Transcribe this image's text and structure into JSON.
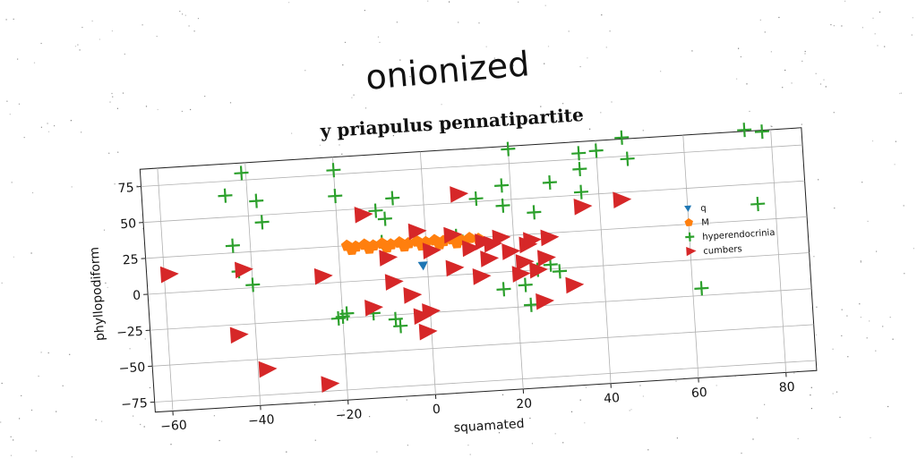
{
  "header": {
    "handwritten_title": "onionized"
  },
  "chart_data": {
    "type": "scatter",
    "title": "y priapulus pennatipartite",
    "xlabel": "squamated",
    "ylabel": "phyllopodiform",
    "xlim": [
      -64,
      87
    ],
    "ylim": [
      -82,
      87
    ],
    "xticks": [
      -60,
      -40,
      -20,
      0,
      20,
      40,
      60,
      80
    ],
    "yticks": [
      -75,
      -50,
      -25,
      0,
      25,
      50,
      75
    ],
    "grid": true,
    "legend_position": "right",
    "series": [
      {
        "name": "q",
        "marker": "triangle-down",
        "color": "#1f77b4",
        "points": [
          [
            -1,
            8
          ]
        ]
      },
      {
        "name": "M",
        "marker": "pentagon",
        "color": "#ff7f0e",
        "points": [
          [
            -18,
            25
          ],
          [
            -16,
            24
          ],
          [
            -14,
            25
          ],
          [
            -12,
            24
          ],
          [
            -10,
            25
          ],
          [
            -8,
            24
          ],
          [
            -6,
            25
          ],
          [
            -4,
            24
          ],
          [
            -2,
            25
          ],
          [
            0,
            24
          ],
          [
            2,
            25
          ],
          [
            4,
            24
          ],
          [
            6,
            25
          ],
          [
            8,
            24
          ],
          [
            10,
            25
          ],
          [
            12,
            24
          ],
          [
            -17,
            22
          ],
          [
            -13,
            22
          ],
          [
            -9,
            22
          ],
          [
            -5,
            22
          ],
          [
            -1,
            22
          ],
          [
            3,
            22
          ],
          [
            7,
            22
          ]
        ]
      },
      {
        "name": "hyperendocrinia",
        "marker": "plus",
        "color": "#2ca02c",
        "points": [
          [
            -41,
            80
          ],
          [
            -20,
            78
          ],
          [
            20,
            85
          ],
          [
            46,
            88
          ],
          [
            74,
            88
          ],
          [
            78,
            86
          ],
          [
            36,
            79
          ],
          [
            40,
            80
          ],
          [
            47,
            73
          ],
          [
            -45,
            65
          ],
          [
            -38,
            60
          ],
          [
            -20,
            60
          ],
          [
            -7,
            56
          ],
          [
            18,
            60
          ],
          [
            29,
            60
          ],
          [
            12,
            52
          ],
          [
            -37,
            45
          ],
          [
            -11,
            48
          ],
          [
            -9,
            42
          ],
          [
            18,
            46
          ],
          [
            25,
            40
          ],
          [
            36,
            52
          ],
          [
            36,
            68
          ],
          [
            76,
            36
          ],
          [
            -44,
            30
          ],
          [
            -43,
            12
          ],
          [
            -40,
            2
          ],
          [
            -10,
            26
          ],
          [
            7,
            27
          ],
          [
            -13,
            -23
          ],
          [
            -8,
            -28
          ],
          [
            -7,
            -33
          ],
          [
            -21,
            -25
          ],
          [
            -20,
            -24
          ],
          [
            -19,
            -22
          ],
          [
            17,
            -12
          ],
          [
            22,
            -10
          ],
          [
            23,
            -24
          ],
          [
            25,
            0
          ],
          [
            28,
            3
          ],
          [
            30,
            -2
          ],
          [
            62,
            -20
          ]
        ]
      },
      {
        "name": "cumbers",
        "marker": "triangle-right",
        "color": "#d62728",
        "points": [
          [
            -59,
            13
          ],
          [
            -42,
            13
          ],
          [
            -44,
            -32
          ],
          [
            -38,
            -57
          ],
          [
            -24,
            -70
          ],
          [
            -24,
            5
          ],
          [
            -14,
            46
          ],
          [
            -13,
            -19
          ],
          [
            -9,
            15
          ],
          [
            -8,
            -2
          ],
          [
            -4,
            -12
          ],
          [
            -2,
            -27
          ],
          [
            -1,
            -38
          ],
          [
            -2,
            32
          ],
          [
            0,
            -24
          ],
          [
            1,
            18
          ],
          [
            6,
            28
          ],
          [
            6,
            5
          ],
          [
            8,
            56
          ],
          [
            10,
            18
          ],
          [
            12,
            -2
          ],
          [
            13,
            22
          ],
          [
            14,
            10
          ],
          [
            15,
            20
          ],
          [
            17,
            24
          ],
          [
            19,
            14
          ],
          [
            21,
            -2
          ],
          [
            22,
            6
          ],
          [
            23,
            18
          ],
          [
            24,
            21
          ],
          [
            25,
            0
          ],
          [
            26,
            -22
          ],
          [
            27,
            8
          ],
          [
            28,
            22
          ],
          [
            33,
            -12
          ],
          [
            36,
            42
          ],
          [
            45,
            45
          ]
        ]
      }
    ]
  }
}
